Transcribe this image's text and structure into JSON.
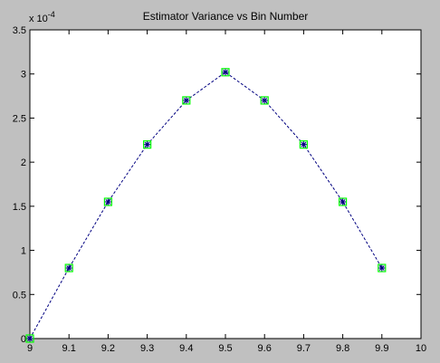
{
  "chart_data": {
    "type": "line",
    "title": "Estimator Variance vs Bin Number",
    "xlabel": "",
    "ylabel": "",
    "y_exponent_label": "x 10",
    "y_exponent_power": "-4",
    "xlim": [
      9,
      10
    ],
    "ylim": [
      0,
      3.5
    ],
    "xticks": [
      "9",
      "9.1",
      "9.2",
      "9.3",
      "9.4",
      "9.5",
      "9.6",
      "9.7",
      "9.8",
      "9.9",
      "10"
    ],
    "yticks": [
      "0",
      "0.5",
      "1",
      "1.5",
      "2",
      "2.5",
      "3",
      "3.5"
    ],
    "grid": false,
    "series": [
      {
        "x": [
          9.0,
          9.1,
          9.2,
          9.3,
          9.4,
          9.5,
          9.6,
          9.7,
          9.8,
          9.9
        ],
        "y": [
          0.0,
          0.8,
          1.55,
          2.2,
          2.7,
          3.02,
          2.7,
          2.2,
          1.55,
          0.8
        ]
      }
    ],
    "colors": {
      "line": "#000080",
      "marker_square": "#00ff00",
      "marker_star": "#000080",
      "figure_bg": "#c0c0c0",
      "axes_bg": "#ffffff"
    }
  }
}
